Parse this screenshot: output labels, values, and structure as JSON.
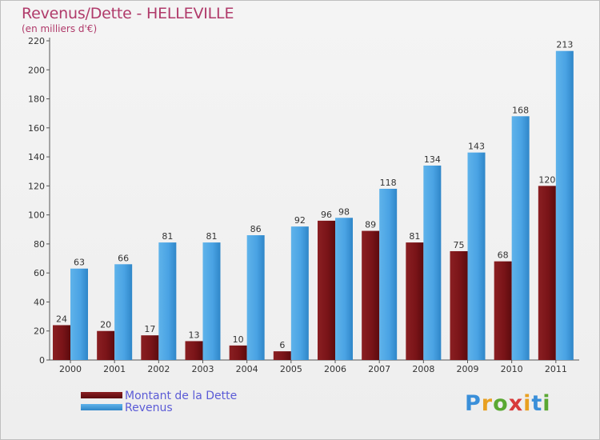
{
  "chart_data": {
    "type": "bar",
    "title": "Revenus/Dette - HELLEVILLE",
    "subtitle": "(en milliers d'€)",
    "categories": [
      "2000",
      "2001",
      "2002",
      "2003",
      "2004",
      "2005",
      "2006",
      "2007",
      "2008",
      "2009",
      "2010",
      "2011"
    ],
    "series": [
      {
        "name": "Montant de la Dette",
        "color": "#7a1418",
        "values": [
          24,
          20,
          17,
          13,
          10,
          6,
          96,
          89,
          81,
          75,
          68,
          120
        ]
      },
      {
        "name": "Revenus",
        "color": "#4aa3e4",
        "values": [
          63,
          66,
          81,
          81,
          86,
          92,
          98,
          118,
          134,
          143,
          168,
          213
        ]
      }
    ],
    "ylim": [
      0,
      220
    ],
    "yticks": [
      0,
      20,
      40,
      60,
      80,
      100,
      120,
      140,
      160,
      180,
      200,
      220
    ],
    "grid": false,
    "legend_position": "bottom-left"
  },
  "logo": {
    "text": "Proxiti"
  }
}
